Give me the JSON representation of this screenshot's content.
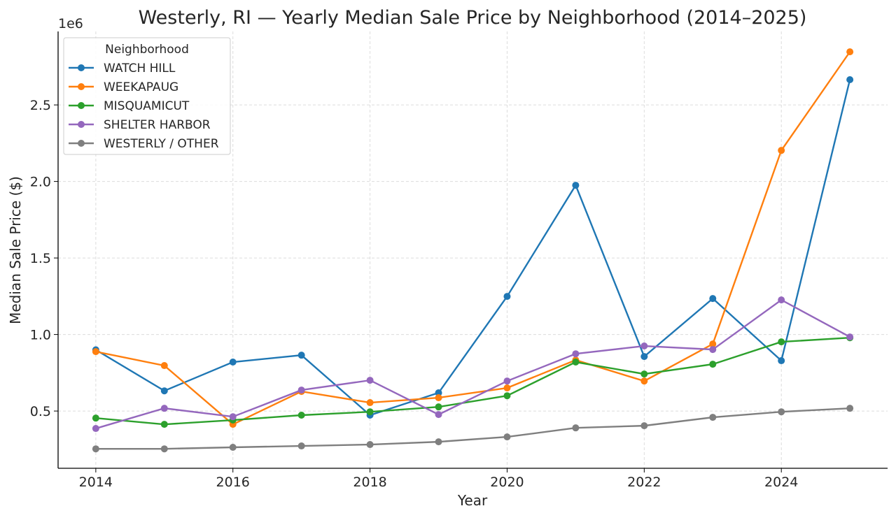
{
  "chart_data": {
    "type": "line",
    "title": "Westerly, RI — Yearly Median Sale Price by Neighborhood (2014–2025)",
    "xlabel": "Year",
    "ylabel": "Median Sale Price ($)",
    "y_offset_label": "1e6",
    "xlim": [
      2013.45,
      2025.55
    ],
    "ylim": [
      126000,
      2980000
    ],
    "xticks": [
      2014,
      2016,
      2018,
      2020,
      2022,
      2024
    ],
    "yticks": [
      500000,
      1000000,
      1500000,
      2000000,
      2500000
    ],
    "ytick_labels": [
      "0.5",
      "1.0",
      "1.5",
      "2.0",
      "2.5"
    ],
    "grid": true,
    "legend": {
      "title": "Neighborhood",
      "placement": "top-left"
    },
    "x": [
      2014,
      2015,
      2016,
      2017,
      2018,
      2019,
      2020,
      2021,
      2022,
      2023,
      2024,
      2025
    ],
    "series": [
      {
        "name": "WATCH HILL",
        "color": "#1f77b4",
        "values": [
          900000,
          632000,
          820000,
          865000,
          473000,
          619000,
          1249000,
          1975000,
          856000,
          1235000,
          829000,
          2665000
        ]
      },
      {
        "name": "WEEKAPAUG",
        "color": "#ff7f0e",
        "values": [
          888000,
          797000,
          413000,
          628000,
          555000,
          587000,
          651000,
          833000,
          696000,
          938000,
          2203000,
          2847000
        ]
      },
      {
        "name": "MISQUAMICUT",
        "color": "#2ca02c",
        "values": [
          454000,
          413000,
          441000,
          473000,
          495000,
          527000,
          600000,
          820000,
          742000,
          806000,
          952000,
          979000
        ]
      },
      {
        "name": "SHELTER HARBOR",
        "color": "#9467bd",
        "values": [
          386000,
          518000,
          463000,
          637000,
          701000,
          477000,
          696000,
          874000,
          925000,
          902000,
          1226000,
          984000
        ]
      },
      {
        "name": "WESTERLY / OTHER",
        "color": "#7f7f7f",
        "values": [
          253000,
          253000,
          263000,
          272000,
          281000,
          299000,
          331000,
          390000,
          404000,
          459000,
          495000,
          518000
        ]
      }
    ]
  }
}
